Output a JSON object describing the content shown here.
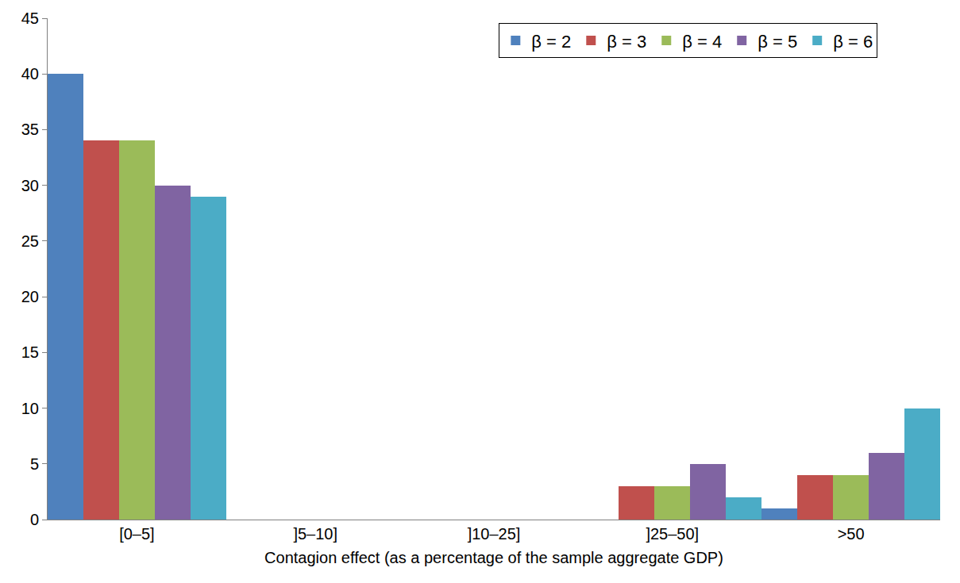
{
  "chart_data": {
    "type": "bar",
    "x_label": "Contagion effect (as a percentage of the sample aggregate GDP)",
    "categories": [
      "[0–5]",
      "]5–10]",
      "]10–25]",
      "]25–50]",
      ">50"
    ],
    "series": [
      {
        "name": "β = 2",
        "color": "#4f81bd",
        "values": [
          40,
          0,
          0,
          0,
          1
        ]
      },
      {
        "name": "β = 3",
        "color": "#c0504d",
        "values": [
          34,
          0,
          0,
          3,
          4
        ]
      },
      {
        "name": "β = 4",
        "color": "#9bbb59",
        "values": [
          34,
          0,
          0,
          3,
          4
        ]
      },
      {
        "name": "β = 5",
        "color": "#8064a2",
        "values": [
          30,
          0,
          0,
          5,
          6
        ]
      },
      {
        "name": "β = 6",
        "color": "#4bacc6",
        "values": [
          29,
          0,
          0,
          2,
          10
        ]
      }
    ],
    "ylim": [
      0,
      45
    ],
    "yticks": [
      0,
      5,
      10,
      15,
      20,
      25,
      30,
      35,
      40,
      45
    ],
    "grid": false,
    "legend": "upper right"
  }
}
